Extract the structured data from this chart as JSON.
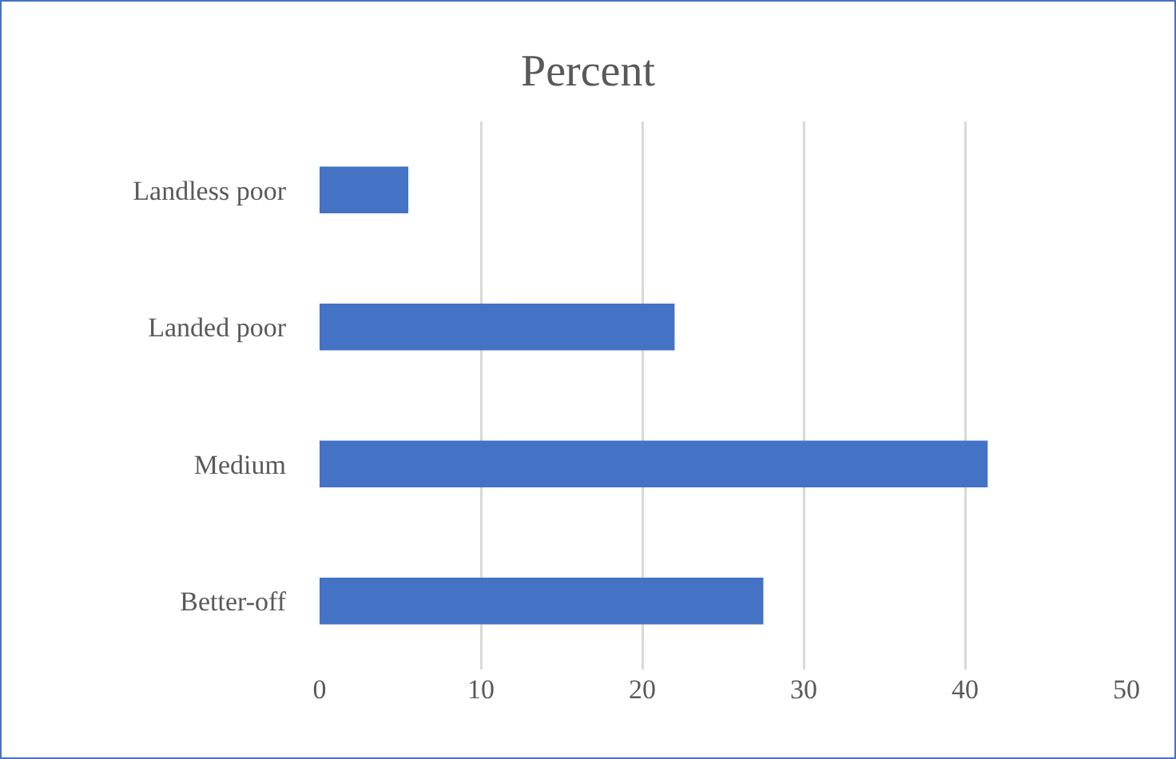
{
  "chart_data": {
    "type": "bar",
    "orientation": "horizontal",
    "title": "Percent",
    "categories": [
      "Landless poor",
      "Landed poor",
      "Medium",
      "Better-off"
    ],
    "values": [
      5.5,
      22,
      41.4,
      27.5
    ],
    "color": "#4472c4",
    "xlim": [
      0,
      50
    ],
    "xticks": [
      0,
      10,
      20,
      30,
      40,
      50
    ],
    "grid": "x",
    "legend": false
  }
}
